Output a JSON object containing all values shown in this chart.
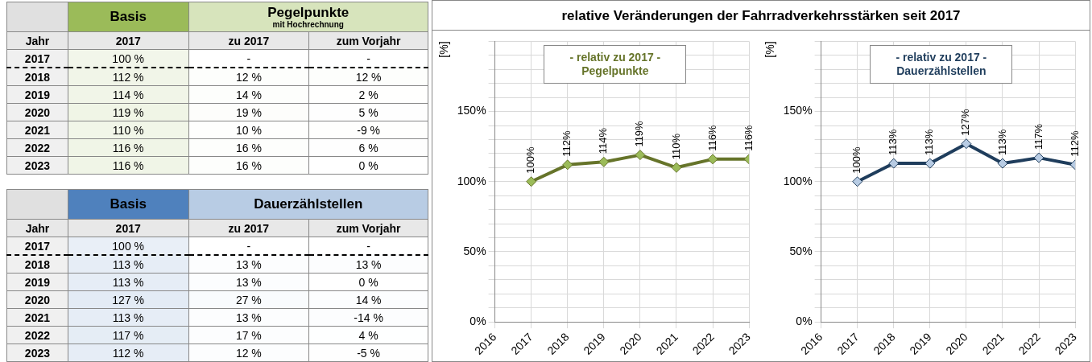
{
  "chart_data": [
    {
      "type": "heatmap",
      "title": "Pegelpunkte",
      "subtitle": "mit Hochrechnung",
      "annotations": [
        "Basis"
      ],
      "ylabel": "Jahr",
      "categories": [
        "2017",
        "zu 2017",
        "zum Vorjahr"
      ],
      "y_categories": [
        "2017",
        "2018",
        "2019",
        "2020",
        "2021",
        "2022",
        "2023"
      ],
      "cells": [
        [
          100,
          null,
          null
        ],
        [
          112,
          12,
          12
        ],
        [
          114,
          14,
          2
        ],
        [
          119,
          19,
          5
        ],
        [
          110,
          10,
          -9
        ],
        [
          116,
          16,
          6
        ],
        [
          116,
          16,
          0
        ]
      ],
      "cell_labels": [
        [
          "100 %",
          "-",
          "-"
        ],
        [
          "112 %",
          "12 %",
          "12 %"
        ],
        [
          "114 %",
          "14 %",
          "2 %"
        ],
        [
          "119 %",
          "19 %",
          "5 %"
        ],
        [
          "110 %",
          "10 %",
          "-9 %"
        ],
        [
          "116 %",
          "16 %",
          "6 %"
        ],
        [
          "116 %",
          "16 %",
          "0 %"
        ]
      ]
    },
    {
      "type": "heatmap",
      "title": "Dauerzählstellen",
      "annotations": [
        "Basis"
      ],
      "ylabel": "Jahr",
      "categories": [
        "2017",
        "zu 2017",
        "zum Vorjahr"
      ],
      "y_categories": [
        "2017",
        "2018",
        "2019",
        "2020",
        "2021",
        "2022",
        "2023"
      ],
      "cells": [
        [
          100,
          null,
          null
        ],
        [
          113,
          13,
          13
        ],
        [
          113,
          13,
          0
        ],
        [
          127,
          27,
          14
        ],
        [
          113,
          13,
          -14
        ],
        [
          117,
          17,
          4
        ],
        [
          112,
          12,
          -5
        ]
      ],
      "cell_labels": [
        [
          "100 %",
          "-",
          "-"
        ],
        [
          "113 %",
          "13 %",
          "13 %"
        ],
        [
          "113 %",
          "13 %",
          "0 %"
        ],
        [
          "127 %",
          "27 %",
          "14 %"
        ],
        [
          "113 %",
          "13 %",
          "-14 %"
        ],
        [
          "117 %",
          "17 %",
          "4 %"
        ],
        [
          "112 %",
          "12 %",
          "-5 %"
        ]
      ]
    },
    {
      "type": "line",
      "title": "relative Veränderungen der Fahrradverkehrsstärken seit 2017",
      "ylabel": "[%]",
      "annotations": [
        "- relativ zu 2017 -",
        "Pegelpunkte"
      ],
      "x": [
        2017,
        2018,
        2019,
        2020,
        2021,
        2022,
        2023
      ],
      "xlim": [
        2016,
        2023
      ],
      "xticks": [
        2016,
        2017,
        2018,
        2019,
        2020,
        2021,
        2022,
        2023
      ],
      "ylim": [
        0,
        200
      ],
      "yticks": [
        {
          "value": 0,
          "label": "0%"
        },
        {
          "value": 10,
          "label": null
        },
        {
          "value": 20,
          "label": null
        },
        {
          "value": 30,
          "label": null
        },
        {
          "value": 40,
          "label": null
        },
        {
          "value": 50,
          "label": "50%"
        },
        {
          "value": 60,
          "label": null
        },
        {
          "value": 70,
          "label": null
        },
        {
          "value": 80,
          "label": null
        },
        {
          "value": 90,
          "label": null
        },
        {
          "value": 100,
          "label": "100%"
        },
        {
          "value": 110,
          "label": null
        },
        {
          "value": 120,
          "label": null
        },
        {
          "value": 130,
          "label": null
        },
        {
          "value": 140,
          "label": null
        },
        {
          "value": 150,
          "label": "150%"
        },
        {
          "value": 160,
          "label": null
        },
        {
          "value": 170,
          "label": null
        },
        {
          "value": 180,
          "label": null
        },
        {
          "value": 190,
          "label": null
        },
        {
          "value": 200,
          "label": null
        }
      ],
      "grid": true,
      "legend": false,
      "marker": "diamond",
      "line_style": "solid",
      "series": [
        {
          "color": "#66742a",
          "values": [
            100,
            112,
            114,
            119,
            110,
            116,
            116
          ],
          "value_labels": [
            "100%",
            "112%",
            "114%",
            "119%",
            "110%",
            "116%",
            "116%"
          ]
        }
      ]
    },
    {
      "type": "line",
      "ylabel": "[%]",
      "annotations": [
        "- relativ zu 2017 -",
        "Dauerzählstellen"
      ],
      "x": [
        2017,
        2018,
        2019,
        2020,
        2021,
        2022,
        2023
      ],
      "xlim": [
        2016,
        2023
      ],
      "xticks": [
        2016,
        2017,
        2018,
        2019,
        2020,
        2021,
        2022,
        2023
      ],
      "ylim": [
        0,
        200
      ],
      "yticks": [
        {
          "value": 0,
          "label": "0%"
        },
        {
          "value": 10,
          "label": null
        },
        {
          "value": 20,
          "label": null
        },
        {
          "value": 30,
          "label": null
        },
        {
          "value": 40,
          "label": null
        },
        {
          "value": 50,
          "label": "50%"
        },
        {
          "value": 60,
          "label": null
        },
        {
          "value": 70,
          "label": null
        },
        {
          "value": 80,
          "label": null
        },
        {
          "value": 90,
          "label": null
        },
        {
          "value": 100,
          "label": "100%"
        },
        {
          "value": 110,
          "label": null
        },
        {
          "value": 120,
          "label": null
        },
        {
          "value": 130,
          "label": null
        },
        {
          "value": 140,
          "label": null
        },
        {
          "value": 150,
          "label": "150%"
        },
        {
          "value": 160,
          "label": null
        },
        {
          "value": 170,
          "label": null
        },
        {
          "value": 180,
          "label": null
        },
        {
          "value": 190,
          "label": null
        },
        {
          "value": 200,
          "label": null
        }
      ],
      "grid": true,
      "legend": false,
      "marker": "diamond",
      "line_style": "solid",
      "series": [
        {
          "color": "#1f3d5c",
          "values": [
            100,
            113,
            113,
            127,
            113,
            117,
            112
          ],
          "value_labels": [
            "100%",
            "113%",
            "113%",
            "127%",
            "113%",
            "117%",
            "112%"
          ]
        }
      ]
    }
  ]
}
